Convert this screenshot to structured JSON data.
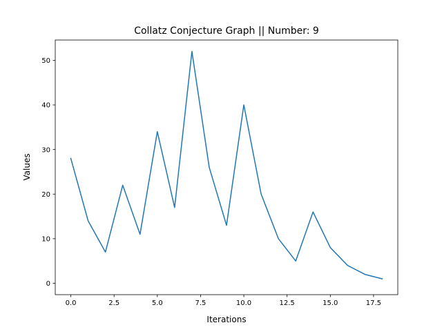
{
  "chart_data": {
    "type": "line",
    "title": "Collatz Conjecture Graph || Number: 9",
    "xlabel": "Iterations",
    "ylabel": "Values",
    "x": [
      0,
      1,
      2,
      3,
      4,
      5,
      6,
      7,
      8,
      9,
      10,
      11,
      12,
      13,
      14,
      15,
      16,
      17,
      18
    ],
    "series": [
      {
        "values": [
          28,
          14,
          7,
          22,
          11,
          34,
          17,
          52,
          26,
          13,
          40,
          20,
          10,
          5,
          16,
          8,
          4,
          2,
          1
        ],
        "color": "#1f77b4"
      }
    ],
    "xlim": [
      -0.9,
      18.9
    ],
    "ylim": [
      -2.55,
      54.55
    ],
    "xticks": [
      0,
      2.5,
      5,
      7.5,
      10,
      12.5,
      15,
      17.5
    ],
    "xtick_labels": [
      "0.0",
      "2.5",
      "5.0",
      "7.5",
      "10.0",
      "12.5",
      "15.0",
      "17.5"
    ],
    "yticks": [
      0,
      10,
      20,
      30,
      40,
      50
    ],
    "ytick_labels": [
      "0",
      "10",
      "20",
      "30",
      "40",
      "50"
    ],
    "grid": false,
    "legend": false
  }
}
